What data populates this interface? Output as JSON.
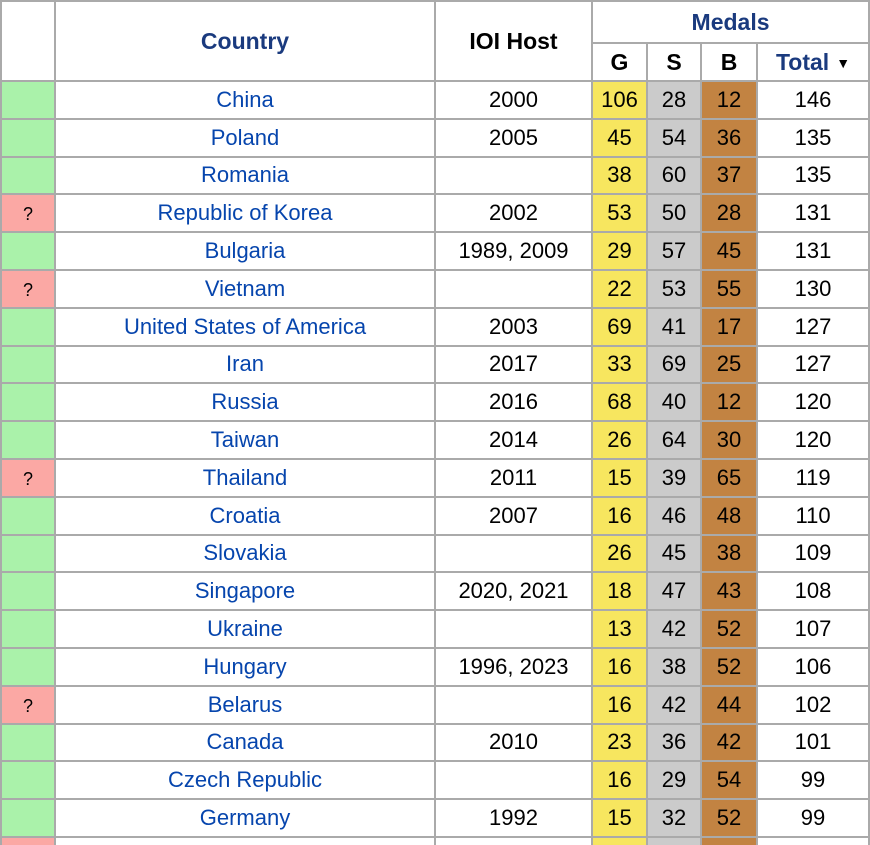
{
  "header": {
    "status": "",
    "country": "Country",
    "ioi_host": "IOI Host",
    "medals": "Medals",
    "gold": "G",
    "silver": "S",
    "bronze": "B",
    "total": "Total",
    "sort_indicator": "▼"
  },
  "colors": {
    "green": "#AAF2AA",
    "pink": "#FBA8A4",
    "gold": "#F7E65F",
    "silver": "#CBCBCB",
    "bronze": "#C28342",
    "link": "#0645AD",
    "header": "#1A3A7E",
    "border": "#AAAAAA"
  },
  "rows": [
    {
      "flag": "green",
      "marker": "",
      "country": "China",
      "host": "2000",
      "gold": "106",
      "silver": "28",
      "bronze": "12",
      "total": "146"
    },
    {
      "flag": "green",
      "marker": "",
      "country": "Poland",
      "host": "2005",
      "gold": "45",
      "silver": "54",
      "bronze": "36",
      "total": "135"
    },
    {
      "flag": "green",
      "marker": "",
      "country": "Romania",
      "host": "",
      "gold": "38",
      "silver": "60",
      "bronze": "37",
      "total": "135"
    },
    {
      "flag": "pink",
      "marker": "?",
      "country": "Republic of Korea",
      "host": "2002",
      "gold": "53",
      "silver": "50",
      "bronze": "28",
      "total": "131"
    },
    {
      "flag": "green",
      "marker": "",
      "country": "Bulgaria",
      "host": "1989, 2009",
      "gold": "29",
      "silver": "57",
      "bronze": "45",
      "total": "131"
    },
    {
      "flag": "pink",
      "marker": "?",
      "country": "Vietnam",
      "host": "",
      "gold": "22",
      "silver": "53",
      "bronze": "55",
      "total": "130"
    },
    {
      "flag": "green",
      "marker": "",
      "country": "United States of America",
      "host": "2003",
      "gold": "69",
      "silver": "41",
      "bronze": "17",
      "total": "127"
    },
    {
      "flag": "green",
      "marker": "",
      "country": "Iran",
      "host": "2017",
      "gold": "33",
      "silver": "69",
      "bronze": "25",
      "total": "127"
    },
    {
      "flag": "green",
      "marker": "",
      "country": "Russia",
      "host": "2016",
      "gold": "68",
      "silver": "40",
      "bronze": "12",
      "total": "120"
    },
    {
      "flag": "green",
      "marker": "",
      "country": "Taiwan",
      "host": "2014",
      "gold": "26",
      "silver": "64",
      "bronze": "30",
      "total": "120"
    },
    {
      "flag": "pink",
      "marker": "?",
      "country": "Thailand",
      "host": "2011",
      "gold": "15",
      "silver": "39",
      "bronze": "65",
      "total": "119"
    },
    {
      "flag": "green",
      "marker": "",
      "country": "Croatia",
      "host": "2007",
      "gold": "16",
      "silver": "46",
      "bronze": "48",
      "total": "110"
    },
    {
      "flag": "green",
      "marker": "",
      "country": "Slovakia",
      "host": "",
      "gold": "26",
      "silver": "45",
      "bronze": "38",
      "total": "109"
    },
    {
      "flag": "green",
      "marker": "",
      "country": "Singapore",
      "host": "2020, 2021",
      "gold": "18",
      "silver": "47",
      "bronze": "43",
      "total": "108"
    },
    {
      "flag": "green",
      "marker": "",
      "country": "Ukraine",
      "host": "",
      "gold": "13",
      "silver": "42",
      "bronze": "52",
      "total": "107"
    },
    {
      "flag": "green",
      "marker": "",
      "country": "Hungary",
      "host": "1996, 2023",
      "gold": "16",
      "silver": "38",
      "bronze": "52",
      "total": "106"
    },
    {
      "flag": "pink",
      "marker": "?",
      "country": "Belarus",
      "host": "",
      "gold": "16",
      "silver": "42",
      "bronze": "44",
      "total": "102"
    },
    {
      "flag": "green",
      "marker": "",
      "country": "Canada",
      "host": "2010",
      "gold": "23",
      "silver": "36",
      "bronze": "42",
      "total": "101"
    },
    {
      "flag": "green",
      "marker": "",
      "country": "Czech Republic",
      "host": "",
      "gold": "16",
      "silver": "29",
      "bronze": "54",
      "total": "99"
    },
    {
      "flag": "green",
      "marker": "",
      "country": "Germany",
      "host": "1992",
      "gold": "15",
      "silver": "32",
      "bronze": "52",
      "total": "99"
    },
    {
      "flag": "pink",
      "marker": "",
      "country": "",
      "host": "",
      "gold": "",
      "silver": "",
      "bronze": "",
      "total": ""
    }
  ]
}
